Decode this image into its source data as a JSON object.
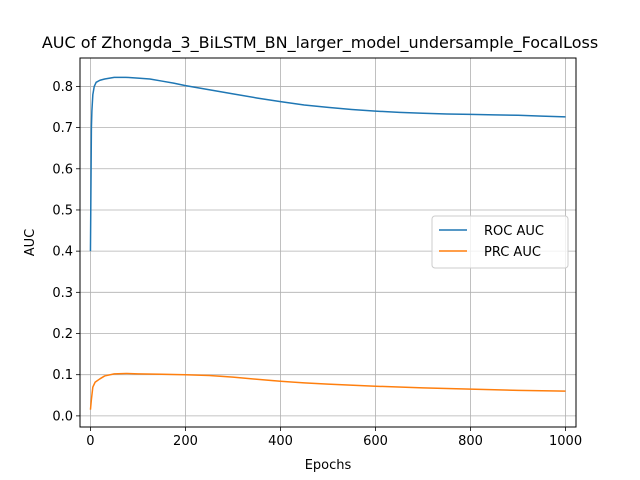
{
  "chart_data": {
    "type": "line",
    "title": "AUC of Zhongda_3_BiLSTM_BN_larger_model_undersample_FocalLoss",
    "xlabel": "Epochs",
    "ylabel": "AUC",
    "xlim": [
      -22,
      1022
    ],
    "ylim": [
      -0.027,
      0.869
    ],
    "xticks": [
      0,
      200,
      400,
      600,
      800,
      1000
    ],
    "xtick_labels": [
      "0",
      "200",
      "400",
      "600",
      "800",
      "1000"
    ],
    "yticks": [
      0.0,
      0.1,
      0.2,
      0.3,
      0.4,
      0.5,
      0.6,
      0.7,
      0.8
    ],
    "ytick_labels": [
      "0.0",
      "0.1",
      "0.2",
      "0.3",
      "0.4",
      "0.5",
      "0.6",
      "0.7",
      "0.8"
    ],
    "grid": true,
    "legend_position": "center-right",
    "series": [
      {
        "name": "ROC AUC",
        "color": "#1f77b4",
        "x": [
          0,
          1,
          2,
          3,
          5,
          8,
          12,
          20,
          30,
          50,
          75,
          100,
          125,
          150,
          175,
          200,
          250,
          300,
          350,
          400,
          450,
          500,
          550,
          600,
          650,
          700,
          750,
          800,
          850,
          900,
          950,
          1000
        ],
        "y": [
          0.4,
          0.55,
          0.7,
          0.74,
          0.78,
          0.8,
          0.81,
          0.815,
          0.818,
          0.822,
          0.822,
          0.82,
          0.818,
          0.813,
          0.808,
          0.802,
          0.792,
          0.782,
          0.772,
          0.763,
          0.755,
          0.749,
          0.744,
          0.74,
          0.737,
          0.735,
          0.733,
          0.732,
          0.731,
          0.73,
          0.728,
          0.726
        ]
      },
      {
        "name": "PRC AUC",
        "color": "#ff7f0e",
        "x": [
          0,
          2,
          5,
          10,
          20,
          30,
          50,
          75,
          100,
          150,
          200,
          250,
          300,
          350,
          400,
          450,
          500,
          600,
          700,
          800,
          900,
          1000
        ],
        "y": [
          0.015,
          0.04,
          0.07,
          0.082,
          0.09,
          0.097,
          0.102,
          0.103,
          0.102,
          0.101,
          0.1,
          0.098,
          0.094,
          0.089,
          0.084,
          0.08,
          0.077,
          0.072,
          0.068,
          0.065,
          0.062,
          0.06
        ]
      }
    ]
  }
}
